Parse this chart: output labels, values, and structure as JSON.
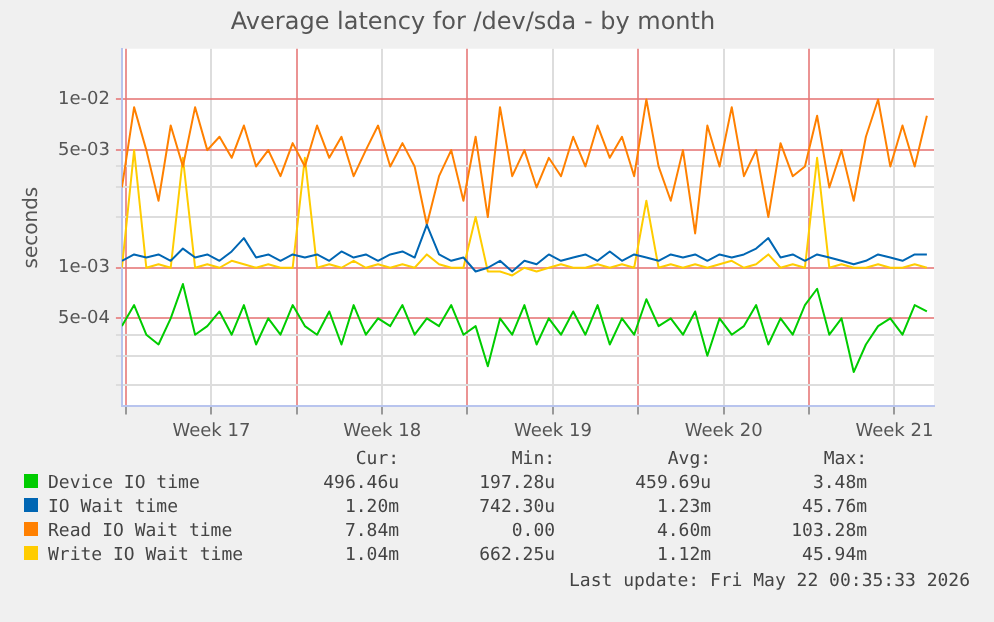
{
  "chart_data": {
    "type": "line",
    "title": "Average latency for /dev/sda - by month",
    "ylabel": "seconds",
    "log": "y",
    "grid": true,
    "legend": "bottom",
    "marker": "none",
    "line_style": "solid",
    "x": [
      "2026-04-19T20:00",
      "2026-04-20T08:00",
      "2026-04-20T20:00",
      "2026-04-21T08:00",
      "2026-04-21T20:00",
      "2026-04-22T08:00",
      "2026-04-22T20:00",
      "2026-04-23T08:00",
      "2026-04-23T20:00",
      "2026-04-24T08:00",
      "2026-04-24T20:00",
      "2026-04-25T08:00",
      "2026-04-25T20:00",
      "2026-04-26T08:00",
      "2026-04-26T20:00",
      "2026-04-27T08:00",
      "2026-04-27T20:00",
      "2026-04-28T08:00",
      "2026-04-28T20:00",
      "2026-04-29T08:00",
      "2026-04-29T20:00",
      "2026-04-30T08:00",
      "2026-04-30T20:00",
      "2026-05-01T08:00",
      "2026-05-01T20:00",
      "2026-05-02T08:00",
      "2026-05-02T20:00",
      "2026-05-03T08:00",
      "2026-05-03T20:00",
      "2026-05-04T08:00",
      "2026-05-04T20:00",
      "2026-05-05T08:00",
      "2026-05-05T20:00",
      "2026-05-06T08:00",
      "2026-05-06T20:00",
      "2026-05-07T08:00",
      "2026-05-07T20:00",
      "2026-05-08T08:00",
      "2026-05-08T20:00",
      "2026-05-09T08:00",
      "2026-05-09T20:00",
      "2026-05-10T08:00",
      "2026-05-10T20:00",
      "2026-05-11T08:00",
      "2026-05-11T20:00",
      "2026-05-12T08:00",
      "2026-05-12T20:00",
      "2026-05-13T08:00",
      "2026-05-13T20:00",
      "2026-05-14T08:00",
      "2026-05-14T20:00",
      "2026-05-15T08:00",
      "2026-05-15T20:00",
      "2026-05-16T08:00",
      "2026-05-16T20:00",
      "2026-05-17T08:00",
      "2026-05-17T20:00",
      "2026-05-18T08:00",
      "2026-05-18T20:00",
      "2026-05-19T08:00",
      "2026-05-19T20:00",
      "2026-05-20T08:00",
      "2026-05-20T20:00",
      "2026-05-21T08:00",
      "2026-05-21T20:00",
      "2026-05-22T08:00",
      "2026-05-22T20:00"
    ],
    "xlim": [
      "2026-04-19T20:00",
      "2026-05-23T03:00"
    ],
    "xticks": [
      {
        "value": "2026-04-20",
        "label": null
      },
      {
        "value": "2026-04-23T12:00",
        "label": "Week 17"
      },
      {
        "value": "2026-04-27",
        "label": null
      },
      {
        "value": "2026-04-30T12:00",
        "label": "Week 18"
      },
      {
        "value": "2026-05-04",
        "label": null
      },
      {
        "value": "2026-05-07T12:00",
        "label": "Week 19"
      },
      {
        "value": "2026-05-11",
        "label": null
      },
      {
        "value": "2026-05-14T12:00",
        "label": "Week 20"
      },
      {
        "value": "2026-05-18",
        "label": null
      },
      {
        "value": "2026-05-21T12:00",
        "label": "Week 21"
      }
    ],
    "ylim": [
      0.00015,
      0.02
    ],
    "yticks": [
      {
        "value": 0.0002,
        "label": null
      },
      {
        "value": 0.0003,
        "label": null
      },
      {
        "value": 0.0004,
        "label": null
      },
      {
        "value": 0.0005,
        "label": "5e-04"
      },
      {
        "value": 0.001,
        "label": "1e-03"
      },
      {
        "value": 0.002,
        "label": null
      },
      {
        "value": 0.003,
        "label": null
      },
      {
        "value": 0.004,
        "label": null
      },
      {
        "value": 0.005,
        "label": "5e-03"
      },
      {
        "value": 0.01,
        "label": "1e-02"
      }
    ],
    "series": [
      {
        "name": "Device IO time",
        "color": "#00cc00",
        "values": [
          0.00045,
          0.0006,
          0.0004,
          0.00035,
          0.0005,
          0.0008,
          0.0004,
          0.00045,
          0.00055,
          0.0004,
          0.0006,
          0.00035,
          0.0005,
          0.0004,
          0.0006,
          0.00045,
          0.0004,
          0.00055,
          0.00035,
          0.0006,
          0.0004,
          0.0005,
          0.00045,
          0.0006,
          0.0004,
          0.0005,
          0.00045,
          0.0006,
          0.0004,
          0.00045,
          0.00026,
          0.0005,
          0.0004,
          0.0006,
          0.00035,
          0.0005,
          0.0004,
          0.00055,
          0.0004,
          0.0006,
          0.00035,
          0.0005,
          0.0004,
          0.00065,
          0.00045,
          0.0005,
          0.0004,
          0.00055,
          0.0003,
          0.0005,
          0.0004,
          0.00045,
          0.0006,
          0.00035,
          0.0005,
          0.0004,
          0.0006,
          0.00075,
          0.0004,
          0.0005,
          0.00024,
          0.00035,
          0.00045,
          0.0005,
          0.0004,
          0.0006,
          0.00055
        ]
      },
      {
        "name": "IO Wait time",
        "color": "#0066b3",
        "values": [
          0.0011,
          0.0012,
          0.00115,
          0.0012,
          0.0011,
          0.0013,
          0.00115,
          0.0012,
          0.0011,
          0.00125,
          0.0015,
          0.00115,
          0.0012,
          0.0011,
          0.0012,
          0.00115,
          0.0012,
          0.0011,
          0.00125,
          0.00115,
          0.0012,
          0.0011,
          0.0012,
          0.00125,
          0.00115,
          0.0018,
          0.0012,
          0.0011,
          0.00115,
          0.00095,
          0.001,
          0.0011,
          0.00095,
          0.0011,
          0.00105,
          0.0012,
          0.0011,
          0.00115,
          0.0012,
          0.0011,
          0.00125,
          0.0011,
          0.0012,
          0.00115,
          0.0011,
          0.0012,
          0.00115,
          0.0012,
          0.0011,
          0.0012,
          0.00115,
          0.0012,
          0.0013,
          0.0015,
          0.00115,
          0.0012,
          0.0011,
          0.0012,
          0.00115,
          0.0011,
          0.00105,
          0.0011,
          0.0012,
          0.00115,
          0.0011,
          0.0012,
          0.0012
        ]
      },
      {
        "name": "Read IO Wait time",
        "color": "#ff8000",
        "values": [
          0.003,
          0.009,
          0.005,
          0.0025,
          0.007,
          0.004,
          0.009,
          0.005,
          0.006,
          0.0045,
          0.007,
          0.004,
          0.005,
          0.0035,
          0.0055,
          0.004,
          0.007,
          0.0045,
          0.006,
          0.0035,
          0.005,
          0.007,
          0.004,
          0.0055,
          0.004,
          0.0018,
          0.0035,
          0.005,
          0.0025,
          0.006,
          0.002,
          0.009,
          0.0035,
          0.005,
          0.003,
          0.0045,
          0.0035,
          0.006,
          0.004,
          0.007,
          0.0045,
          0.006,
          0.0035,
          0.01,
          0.004,
          0.0025,
          0.005,
          0.0016,
          0.007,
          0.004,
          0.009,
          0.0035,
          0.005,
          0.002,
          0.0055,
          0.0035,
          0.004,
          0.008,
          0.003,
          0.005,
          0.0025,
          0.006,
          0.01,
          0.004,
          0.007,
          0.004,
          0.008
        ]
      },
      {
        "name": "Write IO Wait time",
        "color": "#ffcc00",
        "values": [
          0.001,
          0.005,
          0.001,
          0.00105,
          0.001,
          0.0045,
          0.001,
          0.00105,
          0.001,
          0.0011,
          0.00105,
          0.001,
          0.00105,
          0.001,
          0.001,
          0.0045,
          0.001,
          0.00105,
          0.001,
          0.0011,
          0.001,
          0.00105,
          0.001,
          0.00105,
          0.001,
          0.0012,
          0.00105,
          0.001,
          0.001,
          0.002,
          0.00095,
          0.00095,
          0.0009,
          0.001,
          0.00095,
          0.001,
          0.00105,
          0.001,
          0.001,
          0.00105,
          0.001,
          0.00105,
          0.001,
          0.0025,
          0.001,
          0.00105,
          0.001,
          0.00105,
          0.001,
          0.00105,
          0.0011,
          0.001,
          0.00105,
          0.0012,
          0.001,
          0.00105,
          0.001,
          0.0045,
          0.001,
          0.00105,
          0.001,
          0.001,
          0.00105,
          0.001,
          0.001,
          0.00105,
          0.001
        ]
      }
    ],
    "annotations": [
      "Cur:",
      "Min:",
      "Avg:",
      "Max:",
      "496.46u",
      "197.28u",
      "459.69u",
      "3.48m",
      "1.20m",
      "742.30u",
      "1.23m",
      "45.76m",
      "7.84m",
      "0.00",
      "4.60m",
      "103.28m",
      "1.04m",
      "662.25u",
      "1.12m",
      "45.94m",
      "Last update: Fri May 22 00:35:33 2026"
    ]
  }
}
